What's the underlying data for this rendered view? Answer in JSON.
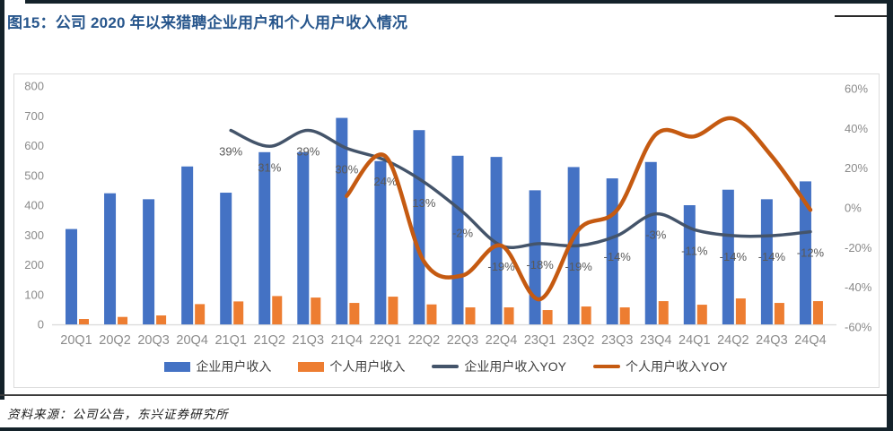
{
  "title": "图15：公司 2020 年以来猎聘企业用户和个人用户收入情况",
  "footer": "资料来源：公司公告，东兴证券研究所",
  "colors": {
    "title_blue": "#27568C",
    "frame_dark": "#14222a",
    "chart_border": "#dcdcdc",
    "axis_text": "#8a8a8a",
    "data_label": "#595959",
    "baseline": "#d9d9d9",
    "bar_blue": "#4472C4",
    "bar_orange": "#ED7D31",
    "line_navy": "#44546A",
    "line_orange": "#C55A11"
  },
  "chart_data": {
    "type": "bar",
    "subtype": "combo-bar-line-dual-axis",
    "grid": false,
    "legend_position": "bottom",
    "categories": [
      "20Q1",
      "20Q2",
      "20Q3",
      "20Q4",
      "21Q1",
      "21Q2",
      "21Q3",
      "21Q4",
      "22Q1",
      "22Q2",
      "22Q3",
      "22Q4",
      "23Q1",
      "23Q2",
      "23Q3",
      "23Q4",
      "24Q1",
      "24Q2",
      "24Q3",
      "24Q4"
    ],
    "left_axis": {
      "min": 0,
      "max": 800,
      "step": 100,
      "ticks": [
        "0",
        "100",
        "200",
        "300",
        "400",
        "500",
        "600",
        "700",
        "800"
      ]
    },
    "right_axis": {
      "min": -60,
      "max": 60,
      "step": 20,
      "suffix": "%",
      "ticks": [
        "-60%",
        "-40%",
        "-20%",
        "0%",
        "20%",
        "40%",
        "60%"
      ]
    },
    "series": [
      {
        "key": "enterprise-revenue",
        "name": "企业用户收入",
        "type": "bar",
        "axis": "left",
        "color": "#4472C4",
        "values": [
          320,
          440,
          420,
          530,
          442,
          578,
          578,
          693,
          548,
          652,
          566,
          562,
          450,
          528,
          490,
          545,
          400,
          452,
          420,
          480
        ]
      },
      {
        "key": "personal-revenue",
        "name": "个人用户收入",
        "type": "bar",
        "axis": "left",
        "color": "#ED7D31",
        "values": [
          18,
          25,
          30,
          68,
          77,
          95,
          90,
          72,
          93,
          67,
          57,
          57,
          48,
          60,
          57,
          78,
          66,
          87,
          72,
          78
        ]
      },
      {
        "key": "enterprise-yoy",
        "name": "企业用户收入YOY",
        "type": "line",
        "axis": "right",
        "color": "#44546A",
        "show_labels": true,
        "values": [
          null,
          null,
          null,
          null,
          39,
          31,
          39,
          30,
          24,
          13,
          -2,
          -19,
          -18,
          -19,
          -14,
          -3,
          -11,
          -14,
          -14,
          -12
        ],
        "labels": [
          "39%",
          "31%",
          "39%",
          "30%",
          "24%",
          "13%",
          "-2%",
          "-19%",
          "-18%",
          "-19%",
          "-14%",
          "-3%",
          "-11%",
          "-14%",
          "-14%",
          "-12%"
        ]
      },
      {
        "key": "personal-yoy",
        "name": "个人用户收入YOY",
        "type": "line",
        "axis": "right",
        "color": "#C55A11",
        "show_labels": false,
        "values": [
          null,
          null,
          null,
          null,
          null,
          null,
          null,
          6,
          26,
          -27,
          -34,
          -19,
          -46,
          -11,
          -1,
          37,
          36,
          45,
          26,
          -1
        ]
      }
    ]
  }
}
